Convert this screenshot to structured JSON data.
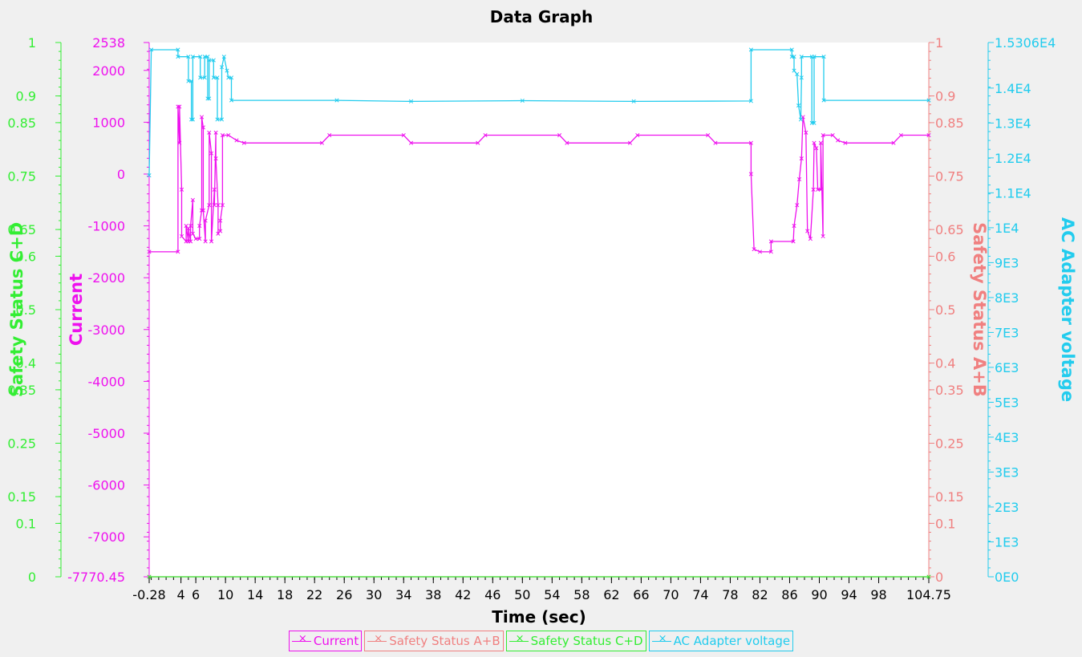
{
  "chart_data": {
    "type": "line",
    "title": "Data Graph",
    "xlabel": "Time (sec)",
    "xlim": [
      -0.28,
      104.75
    ],
    "x_ticks": [
      {
        "value": -0.28,
        "label": "-0.28"
      },
      {
        "value": 4,
        "label": "4"
      },
      {
        "value": 6,
        "label": "6"
      },
      {
        "value": 10,
        "label": "10"
      },
      {
        "value": 14,
        "label": "14"
      },
      {
        "value": 18,
        "label": "18"
      },
      {
        "value": 22,
        "label": "22"
      },
      {
        "value": 26,
        "label": "26"
      },
      {
        "value": 30,
        "label": "30"
      },
      {
        "value": 34,
        "label": "34"
      },
      {
        "value": 38,
        "label": "38"
      },
      {
        "value": 42,
        "label": "42"
      },
      {
        "value": 46,
        "label": "46"
      },
      {
        "value": 50,
        "label": "50"
      },
      {
        "value": 54,
        "label": "54"
      },
      {
        "value": 58,
        "label": "58"
      },
      {
        "value": 62,
        "label": "62"
      },
      {
        "value": 66,
        "label": "66"
      },
      {
        "value": 70,
        "label": "70"
      },
      {
        "value": 74,
        "label": "74"
      },
      {
        "value": 78,
        "label": "78"
      },
      {
        "value": 82,
        "label": "82"
      },
      {
        "value": 86,
        "label": "86"
      },
      {
        "value": 90,
        "label": "90"
      },
      {
        "value": 94,
        "label": "94"
      },
      {
        "value": 98,
        "label": "98"
      },
      {
        "value": 104.75,
        "label": "104.75"
      }
    ],
    "axes": [
      {
        "id": "ssc",
        "label": "Safety Status C+D",
        "color": "#33ee33",
        "side": "left",
        "ylim": [
          0,
          1
        ],
        "ticks": [
          {
            "value": 1,
            "label": "1"
          },
          {
            "value": 0.9,
            "label": "0.9"
          },
          {
            "value": 0.85,
            "label": "0.85"
          },
          {
            "value": 0.75,
            "label": "0.75"
          },
          {
            "value": 0.65,
            "label": "0.65"
          },
          {
            "value": 0.6,
            "label": "0.6"
          },
          {
            "value": 0.5,
            "label": "0.5"
          },
          {
            "value": 0.4,
            "label": "0.4"
          },
          {
            "value": 0.35,
            "label": "0.35"
          },
          {
            "value": 0.25,
            "label": "0.25"
          },
          {
            "value": 0.15,
            "label": "0.15"
          },
          {
            "value": 0.1,
            "label": "0.1"
          },
          {
            "value": 0,
            "label": "0"
          }
        ]
      },
      {
        "id": "cur",
        "label": "Current",
        "color": "#ee11ee",
        "side": "left",
        "ylim": [
          -7770.45,
          2538
        ],
        "ticks": [
          {
            "value": 2538,
            "label": "2538"
          },
          {
            "value": 2000,
            "label": "2000"
          },
          {
            "value": 1000,
            "label": "1000"
          },
          {
            "value": 0,
            "label": "0"
          },
          {
            "value": -1000,
            "label": "-1000"
          },
          {
            "value": -2000,
            "label": "-2000"
          },
          {
            "value": -3000,
            "label": "-3000"
          },
          {
            "value": -4000,
            "label": "-4000"
          },
          {
            "value": -5000,
            "label": "-5000"
          },
          {
            "value": -6000,
            "label": "-6000"
          },
          {
            "value": -7000,
            "label": "-7000"
          },
          {
            "value": -7770.45,
            "label": "-7770.45"
          }
        ]
      },
      {
        "id": "ssa",
        "label": "Safety Status A+B",
        "color": "#f08080",
        "side": "right",
        "ylim": [
          0,
          1
        ],
        "ticks": [
          {
            "value": 1,
            "label": "1"
          },
          {
            "value": 0.9,
            "label": "0.9"
          },
          {
            "value": 0.85,
            "label": "0.85"
          },
          {
            "value": 0.75,
            "label": "0.75"
          },
          {
            "value": 0.65,
            "label": "0.65"
          },
          {
            "value": 0.6,
            "label": "0.6"
          },
          {
            "value": 0.5,
            "label": "0.5"
          },
          {
            "value": 0.4,
            "label": "0.4"
          },
          {
            "value": 0.35,
            "label": "0.35"
          },
          {
            "value": 0.25,
            "label": "0.25"
          },
          {
            "value": 0.15,
            "label": "0.15"
          },
          {
            "value": 0.1,
            "label": "0.1"
          },
          {
            "value": 0,
            "label": "0"
          }
        ]
      },
      {
        "id": "acv",
        "label": "AC Adapter voltage",
        "color": "#22ccee",
        "side": "right",
        "ylim": [
          0,
          15306
        ],
        "ticks": [
          {
            "value": 15306,
            "label": "1.5306E4"
          },
          {
            "value": 14000,
            "label": "1.4E4"
          },
          {
            "value": 13000,
            "label": "1.3E4"
          },
          {
            "value": 12000,
            "label": "1.2E4"
          },
          {
            "value": 11000,
            "label": "1.1E4"
          },
          {
            "value": 10000,
            "label": "1E4"
          },
          {
            "value": 9000,
            "label": "9E3"
          },
          {
            "value": 8000,
            "label": "8E3"
          },
          {
            "value": 7000,
            "label": "7E3"
          },
          {
            "value": 6000,
            "label": "6E3"
          },
          {
            "value": 5000,
            "label": "5E3"
          },
          {
            "value": 4000,
            "label": "4E3"
          },
          {
            "value": 3000,
            "label": "3E3"
          },
          {
            "value": 2000,
            "label": "2E3"
          },
          {
            "value": 1000,
            "label": "1E3"
          },
          {
            "value": 0,
            "label": "0E0"
          }
        ]
      }
    ],
    "series": [
      {
        "name": "Current",
        "axis": "cur",
        "color": "#ee11ee",
        "points": [
          [
            -0.28,
            -1500
          ],
          [
            3.6,
            -1500
          ],
          [
            3.6,
            1300
          ],
          [
            3.8,
            600
          ],
          [
            3.8,
            1300
          ],
          [
            4.1,
            -300
          ],
          [
            4.1,
            -1200
          ],
          [
            4.7,
            -1300
          ],
          [
            4.7,
            -1000
          ],
          [
            5.0,
            -1300
          ],
          [
            5.0,
            -1050
          ],
          [
            5.3,
            -1300
          ],
          [
            5.3,
            -1000
          ],
          [
            5.6,
            -500
          ],
          [
            5.6,
            -1150
          ],
          [
            6.0,
            -1250
          ],
          [
            6.5,
            -1250
          ],
          [
            6.5,
            -1000
          ],
          [
            6.8,
            -700
          ],
          [
            6.8,
            1100
          ],
          [
            7.0,
            900
          ],
          [
            7.0,
            -700
          ],
          [
            7.3,
            -1300
          ],
          [
            7.3,
            -900
          ],
          [
            7.8,
            -600
          ],
          [
            7.8,
            800
          ],
          [
            8.1,
            400
          ],
          [
            8.1,
            -1300
          ],
          [
            8.5,
            -300
          ],
          [
            8.5,
            -600
          ],
          [
            8.7,
            800
          ],
          [
            8.7,
            300
          ],
          [
            9.0,
            -600
          ],
          [
            9.0,
            -1150
          ],
          [
            9.3,
            -1100
          ],
          [
            9.3,
            -900
          ],
          [
            9.6,
            -600
          ],
          [
            9.6,
            750
          ],
          [
            10.4,
            750
          ],
          [
            11.5,
            650
          ],
          [
            12.5,
            600
          ],
          [
            23,
            600
          ],
          [
            24,
            750
          ],
          [
            34,
            750
          ],
          [
            35,
            600
          ],
          [
            44,
            600
          ],
          [
            45,
            750
          ],
          [
            55,
            750
          ],
          [
            56,
            600
          ],
          [
            64.5,
            600
          ],
          [
            65.5,
            750
          ],
          [
            75,
            750
          ],
          [
            76,
            600
          ],
          [
            80.8,
            600
          ],
          [
            80.8,
            0
          ],
          [
            81.2,
            -1450
          ],
          [
            82,
            -1500
          ],
          [
            83.5,
            -1500
          ],
          [
            83.5,
            -1300
          ],
          [
            86.5,
            -1300
          ],
          [
            86.6,
            -1000
          ],
          [
            87,
            -600
          ],
          [
            87.3,
            -100
          ],
          [
            87.6,
            300
          ],
          [
            87.8,
            1100
          ],
          [
            88.2,
            800
          ],
          [
            88.4,
            -1100
          ],
          [
            88.8,
            -1250
          ],
          [
            89.2,
            -300
          ],
          [
            89.3,
            600
          ],
          [
            89.6,
            500
          ],
          [
            89.8,
            -300
          ],
          [
            90.2,
            -300
          ],
          [
            90.2,
            600
          ],
          [
            90.5,
            -1200
          ],
          [
            90.5,
            750
          ],
          [
            91.8,
            750
          ],
          [
            92.5,
            650
          ],
          [
            93.5,
            600
          ],
          [
            100,
            600
          ],
          [
            101,
            750
          ],
          [
            104.75,
            750
          ]
        ]
      },
      {
        "name": "Safety Status A+B",
        "axis": "ssa",
        "color": "#f08080",
        "points": [
          [
            -0.28,
            0
          ],
          [
            104.75,
            0
          ]
        ]
      },
      {
        "name": "Safety Status C+D",
        "axis": "ssc",
        "color": "#33ee33",
        "points": [
          [
            -0.28,
            0
          ],
          [
            104.75,
            0
          ]
        ]
      },
      {
        "name": "AC Adapter voltage",
        "axis": "acv",
        "color": "#22ccee",
        "points": [
          [
            -0.28,
            11500
          ],
          [
            0,
            15100
          ],
          [
            3.6,
            15100
          ],
          [
            3.6,
            14900
          ],
          [
            5.0,
            14900
          ],
          [
            5.0,
            14200
          ],
          [
            5.4,
            14200
          ],
          [
            5.4,
            13100
          ],
          [
            5.6,
            13100
          ],
          [
            5.6,
            14900
          ],
          [
            6.6,
            14900
          ],
          [
            6.6,
            14300
          ],
          [
            7.2,
            14300
          ],
          [
            7.2,
            14900
          ],
          [
            7.6,
            14900
          ],
          [
            7.6,
            13700
          ],
          [
            7.8,
            13700
          ],
          [
            7.8,
            14800
          ],
          [
            8.4,
            14800
          ],
          [
            8.4,
            14300
          ],
          [
            8.9,
            14300
          ],
          [
            8.9,
            13100
          ],
          [
            9.5,
            13100
          ],
          [
            9.5,
            14600
          ],
          [
            9.8,
            14900
          ],
          [
            10.2,
            14500
          ],
          [
            10.4,
            14300
          ],
          [
            10.8,
            14300
          ],
          [
            10.8,
            13650
          ],
          [
            25,
            13650
          ],
          [
            35,
            13620
          ],
          [
            50,
            13640
          ],
          [
            65,
            13620
          ],
          [
            80.8,
            13630
          ],
          [
            80.8,
            15100
          ],
          [
            86.3,
            15100
          ],
          [
            86.3,
            14900
          ],
          [
            86.6,
            14900
          ],
          [
            86.6,
            14500
          ],
          [
            87,
            14400
          ],
          [
            87.2,
            13500
          ],
          [
            87.5,
            13100
          ],
          [
            87.6,
            14300
          ],
          [
            87.6,
            14900
          ],
          [
            89.0,
            14900
          ],
          [
            89.0,
            13000
          ],
          [
            89.3,
            13000
          ],
          [
            89.3,
            14900
          ],
          [
            90.6,
            14900
          ],
          [
            90.6,
            13650
          ],
          [
            104.75,
            13650
          ]
        ]
      }
    ],
    "legend": [
      "Current",
      "Safety Status A+B",
      "Safety Status C+D",
      "AC Adapter voltage"
    ],
    "legend_placement": "bottom-center",
    "grid": false
  }
}
